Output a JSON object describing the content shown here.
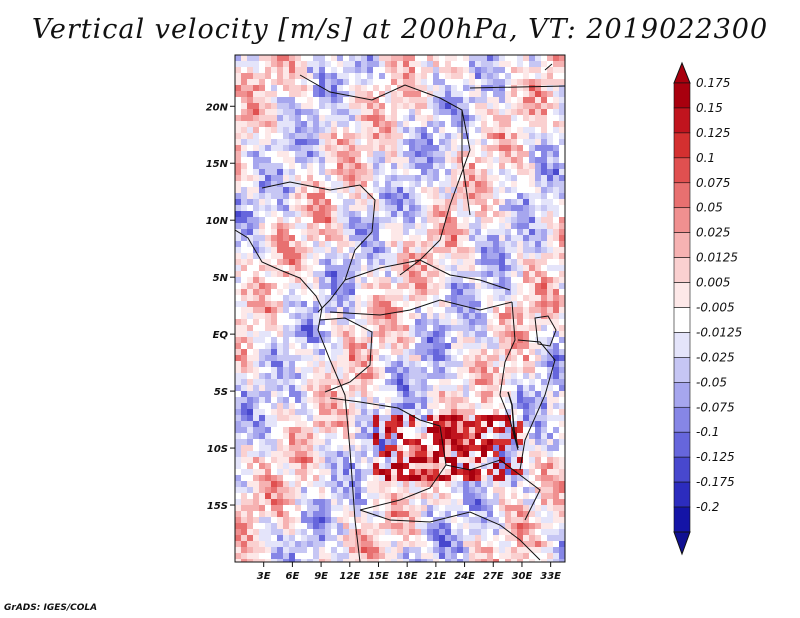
{
  "title": "Vertical velocity [m/s] at 200hPa, VT: 2019022300",
  "credit": "GrADS: IGES/COLA",
  "map": {
    "lon_range": [
      0,
      34.5
    ],
    "lat_range": [
      -20,
      24.5
    ],
    "lat_ticks": [
      {
        "value": 20,
        "label": "20N"
      },
      {
        "value": 15,
        "label": "15N"
      },
      {
        "value": 10,
        "label": "10N"
      },
      {
        "value": 5,
        "label": "5N"
      },
      {
        "value": 0,
        "label": "EQ"
      },
      {
        "value": -5,
        "label": "5S"
      },
      {
        "value": -10,
        "label": "10S"
      },
      {
        "value": -15,
        "label": "15S"
      }
    ],
    "lon_ticks": [
      {
        "value": 3,
        "label": "3E"
      },
      {
        "value": 6,
        "label": "6E"
      },
      {
        "value": 9,
        "label": "9E"
      },
      {
        "value": 12,
        "label": "12E"
      },
      {
        "value": 15,
        "label": "15E"
      },
      {
        "value": 18,
        "label": "18E"
      },
      {
        "value": 21,
        "label": "21E"
      },
      {
        "value": 24,
        "label": "24E"
      },
      {
        "value": 27,
        "label": "27E"
      },
      {
        "value": 30,
        "label": "30E"
      },
      {
        "value": 33,
        "label": "33E"
      }
    ]
  },
  "colorbar": {
    "levels": [
      {
        "label": "0.175",
        "color": "#a8000e"
      },
      {
        "label": "0.15",
        "color": "#c0141e"
      },
      {
        "label": "0.125",
        "color": "#d43030"
      },
      {
        "label": "0.1",
        "color": "#e05050"
      },
      {
        "label": "0.075",
        "color": "#e87070"
      },
      {
        "label": "0.05",
        "color": "#f09090"
      },
      {
        "label": "0.025",
        "color": "#f6b2b2"
      },
      {
        "label": "0.0125",
        "color": "#fad0d0"
      },
      {
        "label": "0.005",
        "color": "#fde8e8"
      },
      {
        "label": "-0.005",
        "color": "#ffffff"
      },
      {
        "label": "-0.0125",
        "color": "#e4e4fa"
      },
      {
        "label": "-0.025",
        "color": "#c6c6f4"
      },
      {
        "label": "-0.05",
        "color": "#a6a6ee"
      },
      {
        "label": "-0.075",
        "color": "#8686e6"
      },
      {
        "label": "-0.1",
        "color": "#6666dc"
      },
      {
        "label": "-0.125",
        "color": "#4848ce"
      },
      {
        "label": "-0.175",
        "color": "#2c2cbe"
      },
      {
        "label": "-0.2",
        "color": "#1414a6"
      }
    ],
    "top_color": "#a8000e",
    "bottom_color": "#101092"
  }
}
